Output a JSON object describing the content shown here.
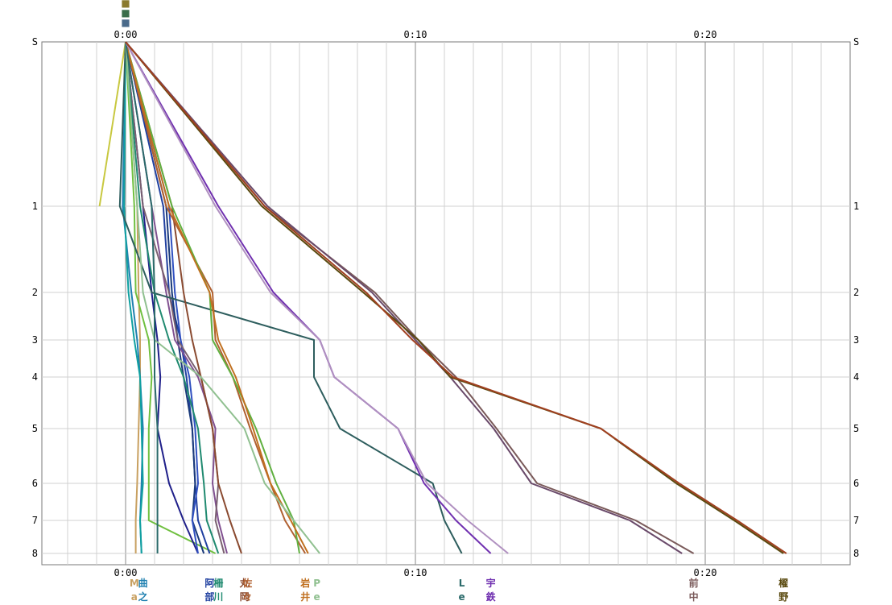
{
  "chart_data": {
    "type": "line",
    "title": "",
    "xlabel": "",
    "ylabel": "",
    "grid": true,
    "legend": "runner name labels at bottom of each line",
    "x_unit": "minutes",
    "xlim": [
      -2.9,
      25.1
    ],
    "x_ticks": [
      {
        "value": 0,
        "label": "0:00"
      },
      {
        "value": 10,
        "label": "0:10"
      },
      {
        "value": 20,
        "label": "0:20"
      }
    ],
    "y_ticks": [
      {
        "index": 0,
        "label": "S"
      },
      {
        "index": 1,
        "label": "1"
      },
      {
        "index": 2,
        "label": "2"
      },
      {
        "index": 3,
        "label": "3"
      },
      {
        "index": 4,
        "label": "4"
      },
      {
        "index": 5,
        "label": "5"
      },
      {
        "index": 6,
        "label": "6"
      },
      {
        "index": 7,
        "label": "7"
      },
      {
        "index": 8,
        "label": "8"
      }
    ],
    "top_labels": [
      {
        "x": 0,
        "text": "■",
        "color": "#8a7a2e"
      },
      {
        "x": 0,
        "text": "■",
        "color": "#3a6e4a"
      },
      {
        "x": 0,
        "text": "■",
        "color": "#4a6a8a"
      }
    ],
    "series": [
      {
        "name": "M",
        "color": "#c8a060",
        "label_x": 0.3,
        "label": "M",
        "label2": "a",
        "values": [
          0,
          0.4,
          0.45,
          0.5,
          0.5,
          0.45,
          0.4,
          0.35,
          0.35
        ]
      },
      {
        "name": "曲",
        "color": "#2080b0",
        "label_x": 0.6,
        "label": "曲",
        "label2": "之",
        "values": [
          0,
          -0.1,
          0.2,
          0.4,
          0.5,
          0.6,
          0.55,
          0.5,
          0.55
        ]
      },
      {
        "name": "",
        "color": "#c8c840",
        "label_x": -0.9,
        "label": "",
        "label2": "",
        "values": [
          0,
          -0.9,
          null,
          null,
          null,
          null,
          null,
          null,
          null
        ]
      },
      {
        "name": "",
        "color": "#10a0a0",
        "label_x": 0.6,
        "label": "",
        "label2": "",
        "values": [
          0,
          -0.05,
          0.1,
          0.3,
          0.5,
          0.55,
          0.6,
          0.5,
          0.55
        ]
      },
      {
        "name": "",
        "color": "#70c040",
        "label_x": 0.8,
        "label": "",
        "label2": "",
        "values": [
          0,
          0.3,
          0.35,
          0.8,
          0.9,
          0.8,
          0.8,
          0.8,
          3.1
        ]
      },
      {
        "name": "",
        "color": "#20208a",
        "label_x": 1.7,
        "label": "",
        "label2": "",
        "values": [
          0,
          0.6,
          0.9,
          1.1,
          1.2,
          1.1,
          1.5,
          2.0,
          2.5
        ]
      },
      {
        "name": "阿",
        "color": "#2040a0",
        "label_x": 2.9,
        "label": "阿",
        "label2": "部",
        "values": [
          0,
          1.3,
          1.5,
          1.9,
          2.1,
          2.3,
          2.4,
          2.5,
          2.9
        ]
      },
      {
        "name": "",
        "color": "#1a3a7a",
        "label_x": 2.7,
        "label": "",
        "label2": "",
        "values": [
          0,
          1.4,
          1.6,
          1.8,
          2.0,
          2.3,
          2.4,
          2.3,
          2.7
        ]
      },
      {
        "name": "",
        "color": "#3050c0",
        "label_x": 2.5,
        "label": "",
        "label2": "",
        "values": [
          0,
          1.5,
          1.7,
          1.9,
          2.2,
          2.4,
          2.5,
          2.3,
          2.5
        ]
      },
      {
        "name": "",
        "color": "#805090",
        "label_x": 3.5,
        "label": "",
        "label2": "",
        "values": [
          0,
          0.9,
          1.4,
          1.7,
          2.5,
          3.1,
          3.0,
          3.2,
          3.5
        ]
      },
      {
        "name": "",
        "color": "#7a6070",
        "label_x": 3.4,
        "label": "",
        "label2": "",
        "values": [
          0,
          0.6,
          1.5,
          1.8,
          2.6,
          3.0,
          3.2,
          3.1,
          3.4
        ]
      },
      {
        "name": "",
        "color": "#2e5e5e",
        "label_x": 11.8,
        "label": "",
        "label2": "",
        "values": [
          0,
          -0.2,
          0.9,
          6.5,
          6.5,
          7.4,
          10.6,
          11.0,
          11.6
        ]
      },
      {
        "name": "柵",
        "color": "#208a70",
        "label_x": 3.2,
        "label": "柵",
        "label2": "川",
        "values": [
          0,
          0.5,
          1.0,
          1.5,
          2.0,
          2.5,
          2.7,
          2.8,
          3.2
        ]
      },
      {
        "name": "丸",
        "color": "#8a4a30",
        "label_x": 4.1,
        "label": "丸",
        "label2": "岡",
        "values": [
          0,
          1.6,
          2.0,
          2.3,
          2.6,
          3.0,
          3.2,
          3.6,
          4.0
        ]
      },
      {
        "name": "佐",
        "color": "#b06030",
        "label_x": 4.2,
        "label": "佐",
        "label2": "々",
        "values": [
          0,
          1.4,
          3.0,
          3.1,
          3.7,
          4.3,
          5.0,
          5.5,
          6.2
        ]
      },
      {
        "name": "",
        "color": "#60b040",
        "label_x": 4.2,
        "label": "",
        "label2": "",
        "values": [
          0,
          1.6,
          2.9,
          3.0,
          3.7,
          4.5,
          5.2,
          5.8,
          6.0
        ]
      },
      {
        "name": "岩",
        "color": "#c07020",
        "label_x": 6.2,
        "label": "岩",
        "label2": "井",
        "values": [
          0,
          1.5,
          2.9,
          3.2,
          3.8,
          4.4,
          5.0,
          5.7,
          6.3
        ]
      },
      {
        "name": "P",
        "color": "#90c090",
        "label_x": 6.6,
        "label": "P",
        "label2": "e",
        "values": [
          0,
          0.4,
          0.6,
          1.0,
          2.6,
          4.1,
          4.8,
          5.8,
          6.7
        ]
      },
      {
        "name": "L",
        "color": "#2a6a6a",
        "label_x": 11.6,
        "label": "L",
        "label2": "e",
        "values": [
          0,
          0.9,
          1.0,
          1.0,
          1.0,
          1.1,
          1.1,
          1.1,
          1.1
        ]
      },
      {
        "name": "宇",
        "color": "#7030b0",
        "label_x": 12.6,
        "label": "宇",
        "label2": "鉄",
        "values": [
          0,
          3.2,
          5.1,
          6.7,
          7.2,
          9.4,
          10.3,
          11.4,
          12.6
        ]
      },
      {
        "name": "",
        "color": "#b090c0",
        "label_x": 13.1,
        "label": "",
        "label2": "",
        "values": [
          0,
          3.1,
          5.0,
          6.7,
          7.2,
          9.4,
          10.4,
          11.8,
          13.2
        ]
      },
      {
        "name": "前",
        "color": "#7a5a5a",
        "label_x": 19.6,
        "label": "前",
        "label2": "中",
        "values": [
          0,
          4.8,
          8.6,
          10.1,
          11.4,
          12.8,
          14.2,
          17.6,
          19.6
        ]
      },
      {
        "name": "",
        "color": "#6a4a6a",
        "label_x": 19.4,
        "label": "",
        "label2": "",
        "values": [
          0,
          4.9,
          8.5,
          10.0,
          11.2,
          12.7,
          14.0,
          17.4,
          19.2
        ]
      },
      {
        "name": "櫂",
        "color": "#5a4a10",
        "label_x": 22.7,
        "label": "櫂",
        "label2": "野",
        "values": [
          0,
          4.7,
          8.2,
          10.1,
          11.2,
          16.4,
          19.0,
          21.0,
          22.7
        ]
      },
      {
        "name": "",
        "color": "#a04020",
        "label_x": 22.7,
        "label": "",
        "label2": "",
        "values": [
          0,
          4.8,
          8.3,
          9.9,
          11.3,
          16.4,
          19.1,
          21.1,
          22.8
        ]
      }
    ]
  }
}
